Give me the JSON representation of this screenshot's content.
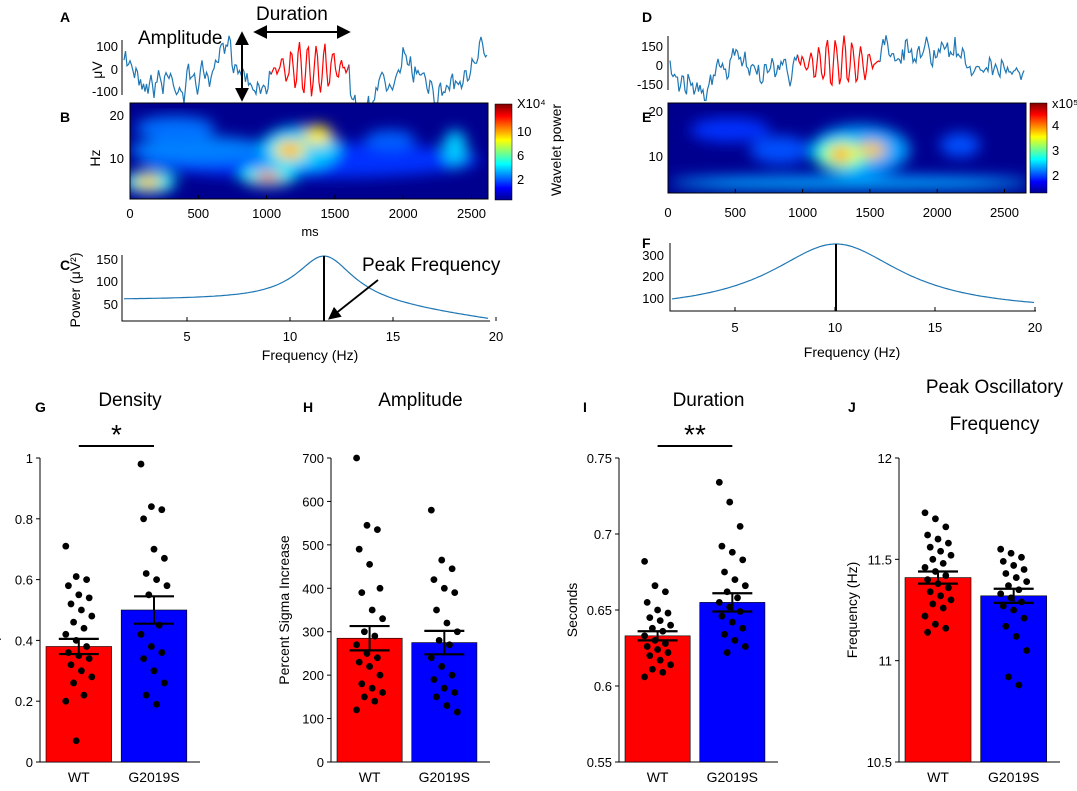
{
  "colors": {
    "wt": "#ff0000",
    "g2019s": "#0000ff",
    "trace": "#1f77b4",
    "trace_highlight": "#ff0000"
  },
  "panels": {
    "A": {
      "label": "A",
      "ylabel": "μV",
      "yticks": [
        "100",
        "0",
        "-100"
      ],
      "annot_amplitude": "Amplitude",
      "annot_duration": "Duration"
    },
    "B": {
      "label": "B",
      "ylabel": "Hz",
      "yticks": [
        "20",
        "10"
      ],
      "xticks": [
        "0",
        "500",
        "1000",
        "1500",
        "2000",
        "2500"
      ],
      "xlabel": "ms",
      "colorbar": {
        "exponent_label": "X10⁴",
        "ticks": [
          "10",
          "6",
          "2"
        ],
        "label": "Wavelet power"
      }
    },
    "C": {
      "label": "C",
      "ylabel": "Power (μV²)",
      "yticks": [
        "150",
        "100",
        "50"
      ],
      "xticks": [
        "5",
        "10",
        "15",
        "20"
      ],
      "xlabel": "Frequency (Hz)",
      "annot": "Peak Frequency"
    },
    "D": {
      "label": "D",
      "yticks": [
        "150",
        "0",
        "-150"
      ]
    },
    "E": {
      "label": "E",
      "yticks": [
        "20",
        "10"
      ],
      "xticks": [
        "0",
        "500",
        "1000",
        "1500",
        "2000",
        "2500"
      ],
      "colorbar": {
        "exponent_label": "x10⁵",
        "ticks": [
          "4",
          "3",
          "2"
        ]
      }
    },
    "F": {
      "label": "F",
      "yticks": [
        "300",
        "200",
        "100"
      ],
      "xticks": [
        "5",
        "10",
        "15",
        "20"
      ],
      "xlabel": "Frequency (Hz)"
    }
  },
  "chart_data": [
    {
      "id": "G",
      "type": "bar",
      "label": "G",
      "title": "Density",
      "ylabel": "Spindles/min",
      "categories": [
        "WT",
        "G2019S"
      ],
      "values": [
        0.38,
        0.5
      ],
      "sem": [
        0.025,
        0.045
      ],
      "ylim": [
        0,
        1
      ],
      "yticks": [
        "0",
        "0.2",
        "0.4",
        "0.6",
        "0.8",
        "1"
      ],
      "significance": "*",
      "points": [
        [
          0.71,
          0.61,
          0.6,
          0.58,
          0.55,
          0.54,
          0.52,
          0.5,
          0.48,
          0.46,
          0.44,
          0.42,
          0.4,
          0.38,
          0.36,
          0.35,
          0.34,
          0.32,
          0.3,
          0.28,
          0.26,
          0.22,
          0.2,
          0.07
        ],
        [
          0.98,
          0.84,
          0.83,
          0.8,
          0.7,
          0.67,
          0.62,
          0.6,
          0.58,
          0.55,
          0.45,
          0.42,
          0.38,
          0.36,
          0.34,
          0.3,
          0.26,
          0.22,
          0.19
        ]
      ]
    },
    {
      "id": "H",
      "type": "bar",
      "label": "H",
      "title": "Amplitude",
      "ylabel": "Percent Sigma Increase",
      "categories": [
        "WT",
        "G2019S"
      ],
      "values": [
        285,
        275
      ],
      "sem": [
        28,
        27
      ],
      "ylim": [
        0,
        700
      ],
      "yticks": [
        "0",
        "100",
        "200",
        "300",
        "400",
        "500",
        "600",
        "700"
      ],
      "significance": "",
      "points": [
        [
          700,
          545,
          535,
          490,
          455,
          400,
          390,
          350,
          330,
          300,
          290,
          270,
          250,
          240,
          230,
          220,
          200,
          180,
          170,
          160,
          150,
          140,
          120
        ],
        [
          580,
          465,
          445,
          420,
          400,
          390,
          350,
          320,
          300,
          280,
          270,
          240,
          220,
          200,
          190,
          170,
          160,
          150,
          130,
          115
        ]
      ]
    },
    {
      "id": "I",
      "type": "bar",
      "label": "I",
      "title": "Duration",
      "ylabel": "Seconds",
      "categories": [
        "WT",
        "G2019S"
      ],
      "values": [
        0.633,
        0.655
      ],
      "sem": [
        0.003,
        0.006
      ],
      "ylim": [
        0.55,
        0.75
      ],
      "yticks": [
        "0.55",
        "0.6",
        "0.65",
        "0.7",
        "0.75"
      ],
      "significance": "**",
      "points": [
        [
          0.682,
          0.666,
          0.662,
          0.655,
          0.65,
          0.648,
          0.645,
          0.643,
          0.64,
          0.638,
          0.636,
          0.633,
          0.63,
          0.628,
          0.626,
          0.624,
          0.622,
          0.62,
          0.617,
          0.614,
          0.611,
          0.609,
          0.606
        ],
        [
          0.734,
          0.721,
          0.705,
          0.692,
          0.688,
          0.683,
          0.675,
          0.67,
          0.666,
          0.662,
          0.658,
          0.655,
          0.652,
          0.649,
          0.646,
          0.642,
          0.638,
          0.634,
          0.63,
          0.626,
          0.622
        ]
      ]
    },
    {
      "id": "J",
      "type": "bar",
      "label": "J",
      "title": "Peak Oscillatory",
      "title2": "Frequency",
      "ylabel": "Frequency (Hz)",
      "categories": [
        "WT",
        "G2019S"
      ],
      "values": [
        11.41,
        11.32
      ],
      "sem": [
        0.03,
        0.035
      ],
      "ylim": [
        10.5,
        12
      ],
      "yticks": [
        "10.5",
        "11",
        "11.5",
        "12"
      ],
      "significance": "",
      "points": [
        [
          11.73,
          11.7,
          11.66,
          11.62,
          11.6,
          11.58,
          11.56,
          11.54,
          11.52,
          11.5,
          11.48,
          11.46,
          11.44,
          11.42,
          11.4,
          11.38,
          11.36,
          11.34,
          11.32,
          11.3,
          11.28,
          11.26,
          11.22,
          11.18,
          11.16,
          11.14
        ],
        [
          11.55,
          11.53,
          11.51,
          11.49,
          11.47,
          11.45,
          11.43,
          11.41,
          11.39,
          11.37,
          11.35,
          11.33,
          11.31,
          11.29,
          11.27,
          11.25,
          11.21,
          11.17,
          11.12,
          11.05,
          10.92,
          10.88
        ]
      ]
    }
  ]
}
